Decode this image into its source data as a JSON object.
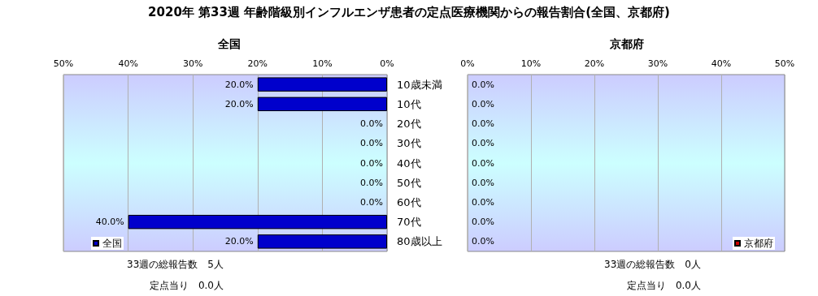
{
  "chart_data": [
    {
      "type": "bar",
      "orientation": "horizontal",
      "title": "2020年 第33週 年齢階級別インフルエンザ患者の定点医療機関からの報告割合(全国、京都府)",
      "subtitle": "全国",
      "categories": [
        "10歳未満",
        "10代",
        "20代",
        "30代",
        "40代",
        "50代",
        "60代",
        "70代",
        "80歳以上"
      ],
      "series": [
        {
          "name": "全国",
          "color": "#0000cc",
          "values": [
            20,
            20,
            0,
            0,
            0,
            0,
            0,
            40,
            20
          ],
          "value_labels": [
            "20.0%",
            "20.0%",
            "0.0%",
            "0.0%",
            "0.0%",
            "0.0%",
            "0.0%",
            "40.0%",
            "20.0%"
          ]
        }
      ],
      "xlim": [
        50,
        0
      ],
      "xticks": [
        {
          "value": 50,
          "label": "50%"
        },
        {
          "value": 40,
          "label": "40%"
        },
        {
          "value": 30,
          "label": "30%"
        },
        {
          "value": 20,
          "label": "20%"
        },
        {
          "value": 10,
          "label": "10%"
        },
        {
          "value": 0,
          "label": "0%"
        }
      ],
      "grid": "x",
      "legend": "bottom left",
      "annotations": [
        "33週の総報告数　5人",
        "定点当り　0.0人"
      ]
    },
    {
      "type": "bar",
      "orientation": "horizontal",
      "subtitle": "京都府",
      "categories": [
        null,
        null,
        null,
        null,
        null,
        null,
        null,
        null,
        null
      ],
      "series": [
        {
          "name": "京都府",
          "color": "#cc0000",
          "values": [
            0,
            0,
            0,
            0,
            0,
            0,
            0,
            0,
            0
          ],
          "value_labels": [
            "0.0%",
            "0.0%",
            "0.0%",
            "0.0%",
            "0.0%",
            "0.0%",
            "0.0%",
            "0.0%",
            "0.0%"
          ]
        }
      ],
      "xlim": [
        0,
        50
      ],
      "xticks": [
        {
          "value": 0,
          "label": "0%"
        },
        {
          "value": 10,
          "label": "10%"
        },
        {
          "value": 20,
          "label": "20%"
        },
        {
          "value": 30,
          "label": "30%"
        },
        {
          "value": 40,
          "label": "40%"
        },
        {
          "value": 50,
          "label": "50%"
        }
      ],
      "grid": "x",
      "legend": "bottom right",
      "annotations": [
        "33週の総報告数　0人",
        "定点当り　0.0人"
      ]
    }
  ]
}
